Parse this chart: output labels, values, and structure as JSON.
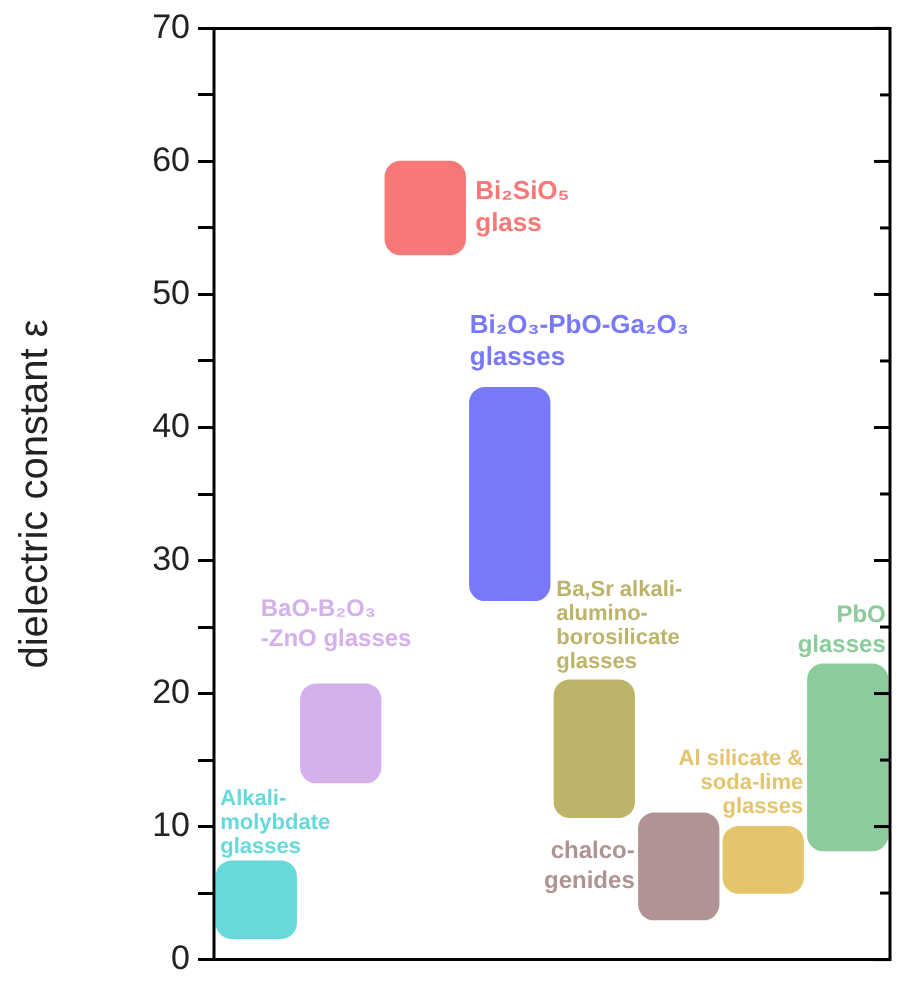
{
  "chart_data": {
    "type": "bar",
    "ylabel": "dielectric constant ε",
    "categories": [
      null,
      null,
      null,
      null,
      null,
      null,
      null,
      null
    ],
    "ylim": [
      0,
      70
    ],
    "yticks": [
      0,
      {
        "value": 5,
        "label": null
      },
      10,
      {
        "value": 15,
        "label": null
      },
      20,
      {
        "value": 25,
        "label": null
      },
      30,
      {
        "value": 35,
        "label": null
      },
      40,
      {
        "value": 45,
        "label": null
      },
      50,
      {
        "value": 55,
        "label": null
      },
      60,
      {
        "value": 65,
        "label": null
      },
      70
    ],
    "tick_labels": "y",
    "grid": false,
    "legend": false,
    "base": [
      1.6,
      13.3,
      53,
      27,
      10.7,
      3,
      5,
      8.2
    ],
    "values": [
      5.8,
      7.4,
      7,
      16,
      10.3,
      8,
      5,
      14
    ],
    "colors": [
      "#66dada",
      "#d4b0ec",
      "#f87878",
      "#7878f8",
      "#bdb46a",
      "#b09494",
      "#e4c46c",
      "#8ccc9c"
    ],
    "annotations": [
      "Alkali-molybdate glasses",
      "BaO-B₂O₃ -ZnO glasses",
      "Bi₂SiO₅ glass",
      "Bi₂O₃-PbO-Ga₂O₃ glasses",
      "Ba,Sr alkali-alumino-borosilicate glasses",
      "chalco-genides",
      "Al silicate & soda-lime glasses",
      "PbO glasses"
    ]
  }
}
